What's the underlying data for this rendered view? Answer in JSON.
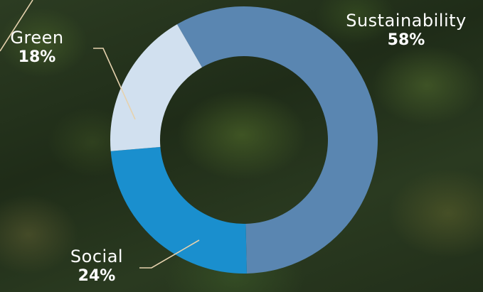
{
  "chart_data": {
    "type": "pie",
    "variant": "donut",
    "title": "",
    "slices": [
      {
        "label": "Sustainability",
        "value": 58,
        "value_label": "58%",
        "color": "#5a86b1"
      },
      {
        "label": "Social",
        "value": 24,
        "value_label": "24%",
        "color": "#1a8fce"
      },
      {
        "label": "Green",
        "value": 18,
        "value_label": "18%",
        "color": "#d1e0ef"
      }
    ],
    "legend": "none"
  },
  "colors": {
    "background": "forest-photo",
    "leader_line": "#e6d2ae",
    "label_text": "#ffffff"
  }
}
